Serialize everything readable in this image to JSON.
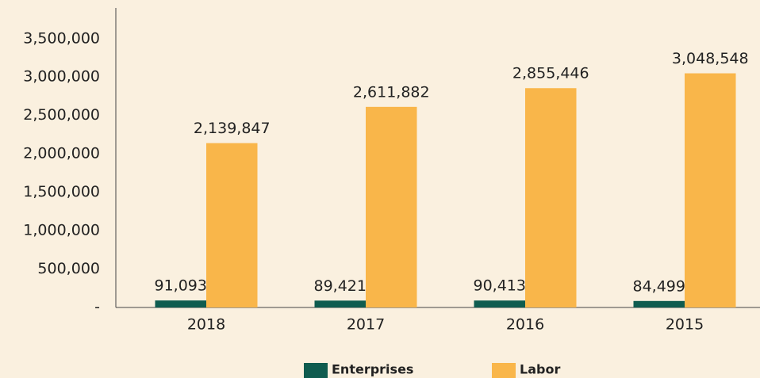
{
  "chart_data": {
    "type": "bar",
    "categories": [
      "2018",
      "2017",
      "2016",
      "2015"
    ],
    "series": [
      {
        "name": "Enterprises",
        "color": "#0f5c4f",
        "values": [
          91093,
          89421,
          90413,
          84499
        ],
        "value_labels": [
          "91,093",
          "89,421",
          "90,413",
          "84,499"
        ]
      },
      {
        "name": "Labor",
        "color": "#f9b64a",
        "values": [
          2139847,
          2611882,
          2855446,
          3048548
        ],
        "value_labels": [
          "2,139,847",
          "2,611,882",
          "2,855,446",
          "3,048,548"
        ]
      }
    ],
    "ylim": [
      0,
      3900000
    ],
    "yticks": [
      {
        "value": 0,
        "label": "-"
      },
      {
        "value": 500000,
        "label": "500,000"
      },
      {
        "value": 1000000,
        "label": "1,000,000"
      },
      {
        "value": 1500000,
        "label": "1,500,000"
      },
      {
        "value": 2000000,
        "label": "2,000,000"
      },
      {
        "value": 2500000,
        "label": "2,500,000"
      },
      {
        "value": 3000000,
        "label": "3,000,000"
      },
      {
        "value": 3500000,
        "label": "3,500,000"
      }
    ],
    "grid": false,
    "legend": "bottom"
  }
}
